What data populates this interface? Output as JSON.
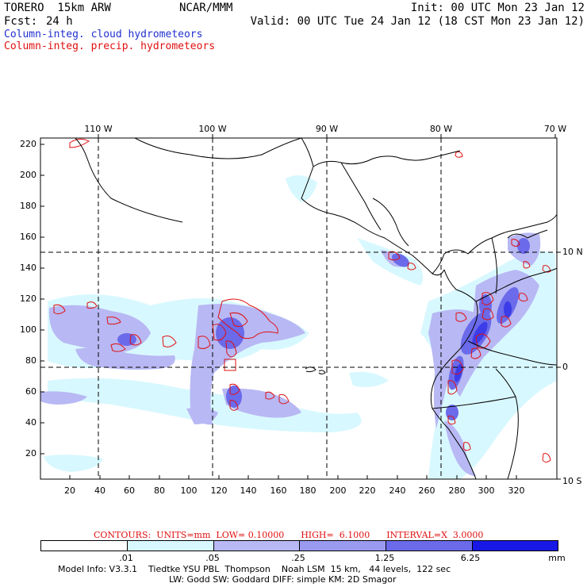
{
  "header": {
    "model": "TORERO  15km ARW",
    "center": "NCAR/MMM",
    "init": "Init: 00 UTC Mon 23 Jan 12",
    "fcst_label": "Fcst:",
    "fcst_value": "24 h",
    "valid": "Valid: 00 UTC Tue 24 Jan 12 (18 CST Mon 23 Jan 12)",
    "legend_cloud": "Column-integ. cloud hydrometeors",
    "legend_precip": "Column-integ. precip. hydrometeors"
  },
  "axes": {
    "y_ticks": [
      "220",
      "200",
      "180",
      "160",
      "140",
      "120",
      "100",
      "80",
      "60",
      "40",
      "20"
    ],
    "x_ticks": [
      "20",
      "40",
      "60",
      "80",
      "100",
      "120",
      "140",
      "160",
      "180",
      "200",
      "220",
      "240",
      "260",
      "280",
      "300",
      "320"
    ],
    "lon_labels": [
      "110 W",
      "100 W",
      "90 W",
      "80 W",
      "70 W"
    ],
    "lat_labels": [
      "10 N",
      "0",
      "10 S"
    ]
  },
  "contours": {
    "text": "CONTOURS:  UNITS=mm  LOW= 0.10000      HIGH=  6.1000      INTERVAL=X  3.0000"
  },
  "colorbar": {
    "labels": [
      ".01",
      ".05",
      ".25",
      "1.25",
      "6.25"
    ],
    "units": "mm",
    "colors": [
      "#ffffff",
      "#d8f8ff",
      "#b8b8f4",
      "#9a9af0",
      "#6a6aea",
      "#3c3ce8",
      "#1818e6"
    ]
  },
  "footer": {
    "line1": "Model Info: V3.3.1    Tiedtke YSU PBL  Thompson    Noah LSM  15 km,   44 levels,  122 sec",
    "line2": "LW: Godd SW: Goddard DIFF: simple KM: 2D Smagor"
  },
  "colors": {
    "cloud": "#2030d0",
    "precip": "#e01010"
  }
}
